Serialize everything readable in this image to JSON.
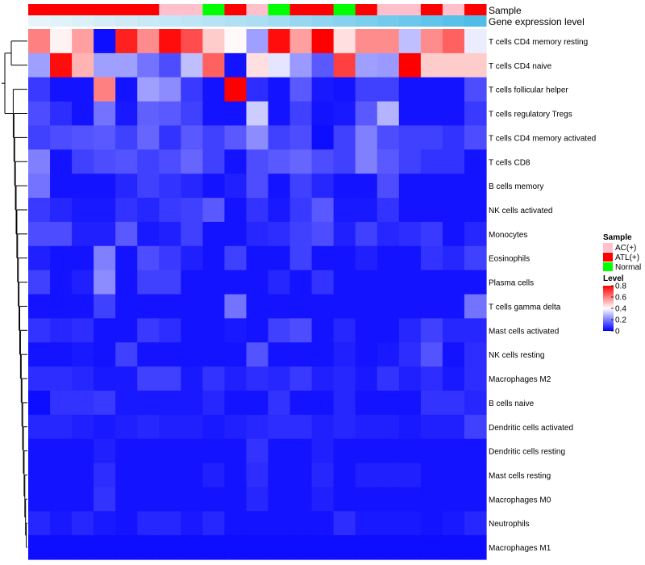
{
  "chart_data": {
    "type": "heatmap",
    "title": "",
    "xlabel": "",
    "ylabel": "",
    "annotation_labels": {
      "sample": "Sample",
      "expression": "Gene expression level"
    },
    "sample_groups": [
      "ATL(+)",
      "ATL(+)",
      "ATL(+)",
      "ATL(+)",
      "ATL(+)",
      "ATL(+)",
      "AC(+)",
      "AC(+)",
      "Normal",
      "ATL(+)",
      "AC(+)",
      "Normal",
      "ATL(+)",
      "ATL(+)",
      "Normal",
      "ATL(+)",
      "AC(+)",
      "AC(+)",
      "ATL(+)",
      "AC(+)",
      "ATL(+)"
    ],
    "expression_levels": [
      0.02,
      0.04,
      0.06,
      0.08,
      0.1,
      0.12,
      0.14,
      0.16,
      0.18,
      0.2,
      0.22,
      0.25,
      0.28,
      0.31,
      0.34,
      0.37,
      0.4,
      0.43,
      0.46,
      0.49,
      0.52
    ],
    "rows": [
      "T cells CD4 memory resting",
      "T cells CD4 naive",
      "T cells follicular helper",
      "T cells regulatory  Tregs",
      "T cells CD4 memory activated",
      "T cells CD8",
      "B cells memory",
      "NK cells activated",
      "Monocytes",
      "Eosinophils",
      "Plasma cells",
      "T cells gamma delta",
      "Mast cells activated",
      "NK cells resting",
      "Macrophages M2",
      "B cells naive",
      "Dendritic cells activated",
      "Dendritic cells resting",
      "Mast cells resting",
      "Macrophages M0",
      "Neutrophils",
      "Macrophages M1"
    ],
    "values": [
      [
        0.6,
        0.42,
        0.55,
        0.02,
        0.75,
        0.58,
        0.78,
        0.68,
        0.48,
        0.41,
        0.25,
        0.78,
        0.55,
        0.8,
        0.45,
        0.58,
        0.58,
        0.3,
        0.58,
        0.65,
        0.37
      ],
      [
        0.25,
        0.78,
        0.52,
        0.25,
        0.25,
        0.18,
        0.12,
        0.3,
        0.65,
        0.03,
        0.45,
        0.36,
        0.24,
        0.14,
        0.7,
        0.25,
        0.24,
        0.8,
        0.48,
        0.48,
        0.48
      ],
      [
        0.09,
        0.03,
        0.03,
        0.6,
        0.03,
        0.25,
        0.22,
        0.09,
        0.03,
        0.8,
        0.07,
        0.03,
        0.14,
        0.04,
        0.03,
        0.1,
        0.1,
        0.03,
        0.03,
        0.03,
        0.12
      ],
      [
        0.12,
        0.07,
        0.03,
        0.18,
        0.04,
        0.15,
        0.14,
        0.1,
        0.03,
        0.03,
        0.32,
        0.03,
        0.1,
        0.03,
        0.04,
        0.14,
        0.28,
        0.03,
        0.03,
        0.03,
        0.09
      ],
      [
        0.1,
        0.12,
        0.13,
        0.14,
        0.1,
        0.16,
        0.08,
        0.14,
        0.1,
        0.14,
        0.22,
        0.1,
        0.12,
        0.02,
        0.1,
        0.2,
        0.12,
        0.1,
        0.1,
        0.08,
        0.12
      ],
      [
        0.2,
        0.03,
        0.1,
        0.12,
        0.13,
        0.1,
        0.12,
        0.16,
        0.1,
        0.03,
        0.12,
        0.14,
        0.16,
        0.12,
        0.1,
        0.2,
        0.14,
        0.1,
        0.08,
        0.08,
        0.03
      ],
      [
        0.18,
        0.03,
        0.03,
        0.03,
        0.06,
        0.1,
        0.08,
        0.06,
        0.03,
        0.05,
        0.12,
        0.03,
        0.1,
        0.06,
        0.03,
        0.03,
        0.12,
        0.03,
        0.03,
        0.03,
        0.03
      ],
      [
        0.09,
        0.06,
        0.04,
        0.04,
        0.08,
        0.06,
        0.09,
        0.1,
        0.14,
        0.03,
        0.08,
        0.04,
        0.09,
        0.14,
        0.04,
        0.04,
        0.08,
        0.03,
        0.03,
        0.03,
        0.03
      ],
      [
        0.12,
        0.12,
        0.05,
        0.05,
        0.14,
        0.04,
        0.05,
        0.1,
        0.03,
        0.03,
        0.06,
        0.07,
        0.1,
        0.12,
        0.05,
        0.1,
        0.06,
        0.07,
        0.09,
        0.03,
        0.06
      ],
      [
        0.05,
        0.03,
        0.03,
        0.2,
        0.03,
        0.12,
        0.09,
        0.05,
        0.03,
        0.1,
        0.03,
        0.03,
        0.1,
        0.03,
        0.03,
        0.05,
        0.03,
        0.03,
        0.08,
        0.06,
        0.1
      ],
      [
        0.1,
        0.03,
        0.05,
        0.22,
        0.03,
        0.1,
        0.1,
        0.03,
        0.03,
        0.03,
        0.03,
        0.06,
        0.03,
        0.08,
        0.03,
        0.03,
        0.03,
        0.03,
        0.03,
        0.03,
        0.03
      ],
      [
        0.03,
        0.03,
        0.03,
        0.1,
        0.03,
        0.03,
        0.03,
        0.03,
        0.03,
        0.18,
        0.03,
        0.03,
        0.03,
        0.03,
        0.03,
        0.03,
        0.03,
        0.03,
        0.03,
        0.03,
        0.18
      ],
      [
        0.08,
        0.06,
        0.07,
        0.03,
        0.03,
        0.09,
        0.07,
        0.03,
        0.03,
        0.04,
        0.03,
        0.1,
        0.12,
        0.03,
        0.06,
        0.03,
        0.03,
        0.06,
        0.1,
        0.06,
        0.06
      ],
      [
        0.03,
        0.03,
        0.04,
        0.03,
        0.1,
        0.03,
        0.03,
        0.03,
        0.03,
        0.03,
        0.13,
        0.03,
        0.03,
        0.03,
        0.05,
        0.03,
        0.04,
        0.07,
        0.13,
        0.03,
        0.07
      ],
      [
        0.07,
        0.07,
        0.06,
        0.04,
        0.04,
        0.1,
        0.1,
        0.04,
        0.08,
        0.05,
        0.07,
        0.06,
        0.09,
        0.05,
        0.06,
        0.04,
        0.08,
        0.05,
        0.07,
        0.04,
        0.07
      ],
      [
        0.02,
        0.08,
        0.08,
        0.09,
        0.04,
        0.04,
        0.04,
        0.04,
        0.06,
        0.03,
        0.03,
        0.08,
        0.03,
        0.03,
        0.06,
        0.03,
        0.03,
        0.03,
        0.08,
        0.08,
        0.06
      ],
      [
        0.06,
        0.06,
        0.05,
        0.04,
        0.05,
        0.06,
        0.05,
        0.05,
        0.04,
        0.05,
        0.06,
        0.07,
        0.07,
        0.05,
        0.06,
        0.05,
        0.05,
        0.04,
        0.05,
        0.05,
        0.1
      ],
      [
        0.03,
        0.03,
        0.03,
        0.05,
        0.03,
        0.03,
        0.03,
        0.03,
        0.03,
        0.03,
        0.08,
        0.03,
        0.03,
        0.05,
        0.03,
        0.03,
        0.03,
        0.03,
        0.03,
        0.03,
        0.03
      ],
      [
        0.03,
        0.03,
        0.03,
        0.07,
        0.03,
        0.03,
        0.03,
        0.03,
        0.05,
        0.03,
        0.07,
        0.03,
        0.03,
        0.06,
        0.03,
        0.05,
        0.05,
        0.05,
        0.03,
        0.03,
        0.03
      ],
      [
        0.03,
        0.03,
        0.03,
        0.08,
        0.03,
        0.03,
        0.03,
        0.03,
        0.03,
        0.03,
        0.06,
        0.03,
        0.03,
        0.05,
        0.03,
        0.03,
        0.03,
        0.03,
        0.03,
        0.03,
        0.03
      ],
      [
        0.06,
        0.04,
        0.06,
        0.04,
        0.03,
        0.06,
        0.06,
        0.04,
        0.06,
        0.03,
        0.03,
        0.03,
        0.03,
        0.03,
        0.07,
        0.04,
        0.04,
        0.04,
        0.03,
        0.04,
        0.06
      ],
      [
        0.02,
        0.02,
        0.02,
        0.02,
        0.02,
        0.02,
        0.02,
        0.02,
        0.02,
        0.02,
        0.02,
        0.02,
        0.02,
        0.02,
        0.02,
        0.02,
        0.02,
        0.02,
        0.02,
        0.02,
        0.02
      ]
    ],
    "legend": {
      "sample_title": "Sample",
      "sample_entries": [
        {
          "label": "AC(+)",
          "color": "#ffc0cb"
        },
        {
          "label": "ATL(+)",
          "color": "#ff0000"
        },
        {
          "label": "Normal",
          "color": "#00ff00"
        }
      ],
      "level_title": "Level",
      "level_ticks": [
        "0.8",
        "0.6",
        "0.4",
        "0.2",
        "0"
      ],
      "level_range": [
        0,
        0.8
      ]
    },
    "colors": {
      "low": "#0000ff",
      "mid": "#ffffff",
      "high": "#ff0000"
    }
  }
}
